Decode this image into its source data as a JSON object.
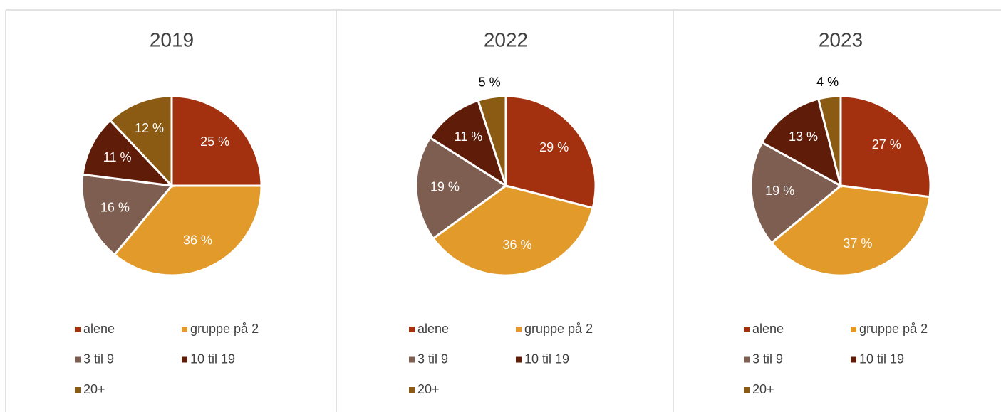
{
  "chart_data": [
    {
      "type": "pie",
      "title": "2019",
      "categories": [
        "alene",
        "gruppe på 2",
        "3 til 9",
        "10 til 19",
        "20+"
      ],
      "values": [
        25,
        36,
        16,
        11,
        12
      ],
      "value_labels": [
        "25 %",
        "36 %",
        "16 %",
        "11 %",
        "12 %"
      ],
      "colors": [
        "#a3300f",
        "#e29b2a",
        "#7e5e50",
        "#5f1c09",
        "#8b5a13"
      ]
    },
    {
      "type": "pie",
      "title": "2022",
      "categories": [
        "alene",
        "gruppe på 2",
        "3 til 9",
        "10 til 19",
        "20+"
      ],
      "values": [
        29,
        36,
        19,
        11,
        5
      ],
      "value_labels": [
        "29 %",
        "36 %",
        "19 %",
        "11 %",
        "5 %"
      ],
      "colors": [
        "#a3300f",
        "#e29b2a",
        "#7e5e50",
        "#5f1c09",
        "#8b5a13"
      ]
    },
    {
      "type": "pie",
      "title": "2023",
      "categories": [
        "alene",
        "gruppe på 2",
        "3 til 9",
        "10 til 19",
        "20+"
      ],
      "values": [
        27,
        37,
        19,
        13,
        4
      ],
      "value_labels": [
        "27 %",
        "37 %",
        "19 %",
        "13 %",
        "4 %"
      ],
      "colors": [
        "#a3300f",
        "#e29b2a",
        "#7e5e50",
        "#5f1c09",
        "#8b5a13"
      ]
    }
  ]
}
